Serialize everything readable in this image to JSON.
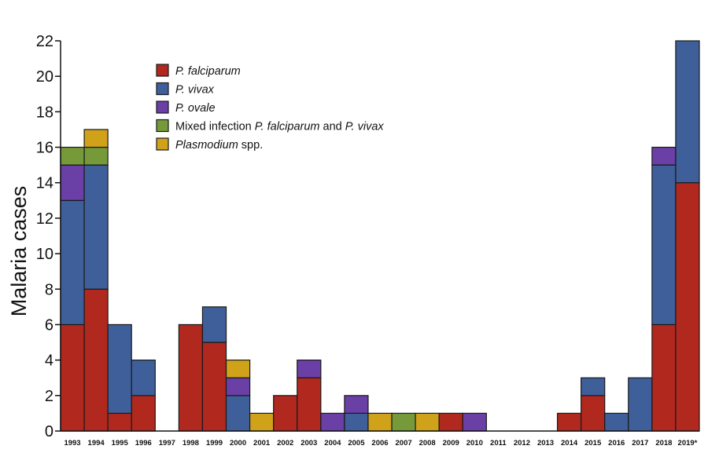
{
  "chart_data": {
    "type": "bar",
    "stacked": true,
    "ylabel": "Malaria cases",
    "xlabel": "",
    "ylim": [
      0,
      22
    ],
    "yticks": [
      0,
      2,
      4,
      6,
      8,
      10,
      12,
      14,
      16,
      18,
      20,
      22
    ],
    "grid": false,
    "legend_position": "top-left",
    "categories": [
      "1993",
      "1994",
      "1995",
      "1996",
      "1997",
      "1998",
      "1999",
      "2000",
      "2001",
      "2002",
      "2003",
      "2004",
      "2005",
      "2006",
      "2007",
      "2008",
      "2009",
      "2010",
      "2011",
      "2012",
      "2013",
      "2014",
      "2015",
      "2016",
      "2017",
      "2018",
      "2019*"
    ],
    "series": [
      {
        "name": "P. falciparum",
        "color": "#b0281e",
        "values": [
          6,
          8,
          1,
          2,
          0,
          6,
          5,
          0,
          0,
          2,
          3,
          0,
          0,
          0,
          0,
          0,
          1,
          0,
          0,
          0,
          0,
          1,
          2,
          0,
          0,
          6,
          14
        ]
      },
      {
        "name": "P. vivax",
        "color": "#3f5f9a",
        "values": [
          7,
          7,
          5,
          2,
          0,
          0,
          2,
          2,
          0,
          0,
          0,
          0,
          1,
          0,
          0,
          0,
          0,
          0,
          0,
          0,
          0,
          0,
          1,
          1,
          3,
          9,
          8
        ]
      },
      {
        "name": "P. ovale",
        "color": "#6a3fa6",
        "values": [
          2,
          0,
          0,
          0,
          0,
          0,
          0,
          1,
          0,
          0,
          1,
          1,
          1,
          0,
          0,
          0,
          0,
          1,
          0,
          0,
          0,
          0,
          0,
          0,
          0,
          1,
          0
        ]
      },
      {
        "name": "Mixed infection P. falciparum and P. vivax",
        "color": "#76993a",
        "values": [
          1,
          1,
          0,
          0,
          0,
          0,
          0,
          0,
          0,
          0,
          0,
          0,
          0,
          0,
          1,
          0,
          0,
          0,
          0,
          0,
          0,
          0,
          0,
          0,
          0,
          0,
          0
        ]
      },
      {
        "name": "Plasmodium spp.",
        "color": "#cfa21a",
        "values": [
          0,
          1,
          0,
          0,
          0,
          0,
          0,
          1,
          1,
          0,
          0,
          0,
          0,
          1,
          0,
          1,
          0,
          0,
          0,
          0,
          0,
          0,
          0,
          0,
          0,
          0,
          0
        ]
      }
    ],
    "legend": [
      {
        "parts": [
          {
            "text": "P. falciparum",
            "italic": true
          }
        ]
      },
      {
        "parts": [
          {
            "text": "P. vivax",
            "italic": true
          }
        ]
      },
      {
        "parts": [
          {
            "text": "P. ovale",
            "italic": true
          }
        ]
      },
      {
        "parts": [
          {
            "text": "Mixed infection ",
            "italic": false
          },
          {
            "text": "P. falciparum",
            "italic": true
          },
          {
            "text": " and ",
            "italic": false
          },
          {
            "text": "P. vivax",
            "italic": true
          }
        ]
      },
      {
        "parts": [
          {
            "text": "Plasmodium",
            "italic": true
          },
          {
            "text": " spp.",
            "italic": false
          }
        ]
      }
    ]
  }
}
